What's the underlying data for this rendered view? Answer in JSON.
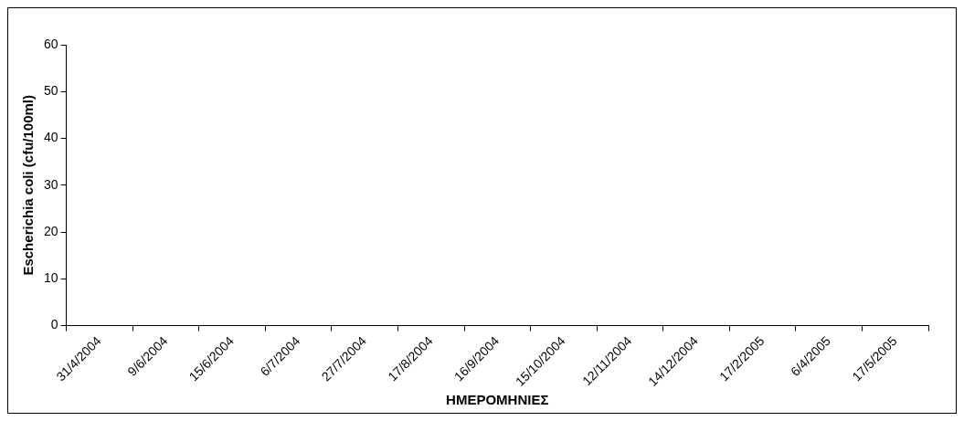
{
  "chart_data": {
    "type": "bar",
    "xlabel": "ΗΜΕΡΟΜΗΝΙΕΣ",
    "ylabel": "Escherichia coli (cfu/100ml)",
    "categories": [
      "31/4/2004",
      "9/6/2004",
      "15/6/2004",
      "6/7/2004",
      "27/7/2004",
      "17/8/2004",
      "16/9/2004",
      "15/10/2004",
      "12/11/2004",
      "14/12/2004",
      "17/2/2005",
      "6/4/2005",
      "17/5/2005"
    ],
    "values": [
      0,
      0,
      0,
      0,
      0,
      0,
      0,
      0,
      0,
      0,
      0,
      0,
      0
    ],
    "ylim": [
      0,
      60
    ],
    "yticks": [
      0,
      10,
      20,
      30,
      40,
      50,
      60
    ],
    "grid": false,
    "legend": false
  }
}
